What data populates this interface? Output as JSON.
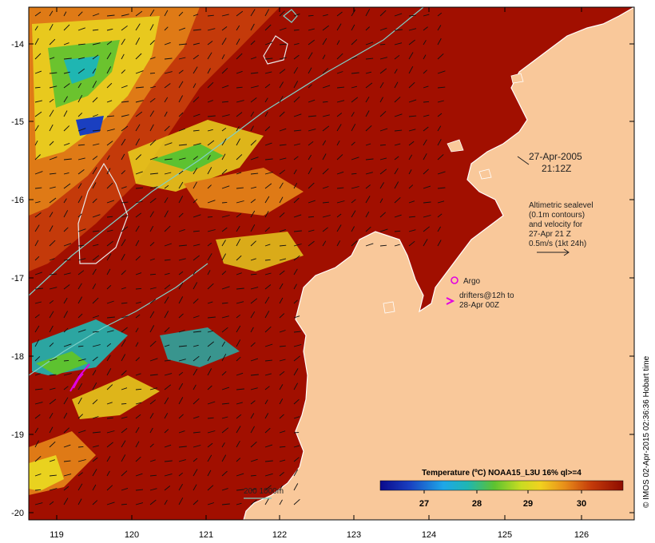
{
  "map": {
    "axes": {
      "x_ticks": [
        "119",
        "120",
        "121",
        "122",
        "123",
        "124",
        "125",
        "126"
      ],
      "y_ticks": [
        "-14",
        "-15",
        "-16",
        "-17",
        "-18",
        "-19",
        "-20"
      ]
    },
    "annotations": {
      "date": "27-Apr-2005",
      "time": "21:12Z",
      "altimetry": [
        "Altimetric sealevel",
        "(0.1m contours)",
        "and velocity for",
        "27-Apr 21 Z",
        "0.5m/s (1kt 24h)"
      ],
      "argo_label": "Argo",
      "drifters": [
        "drifters@12h to",
        "28-Apr 00Z"
      ],
      "bathy_label": "200  1000m"
    },
    "colorbar": {
      "title": "Temperature (ºC) NOAA15_L3U 16% ql>=4",
      "ticks": [
        "27",
        "28",
        "29",
        "30"
      ]
    },
    "credit": "© IMOS 02-Apr-2015 02:36:36 Hobart time",
    "colors": {
      "land": "#f9c89a",
      "sst_hot": "#a10f00",
      "sst_warm": "#c43a0a",
      "sst_mid": "#df7a16",
      "sst_yellow": "#e9d21f",
      "sst_green": "#5dc230",
      "sst_cyan": "#1fb6b2",
      "sst_blue": "#1a3fc0",
      "contour": "#7fd0c8",
      "argo": "#e100e1"
    }
  }
}
